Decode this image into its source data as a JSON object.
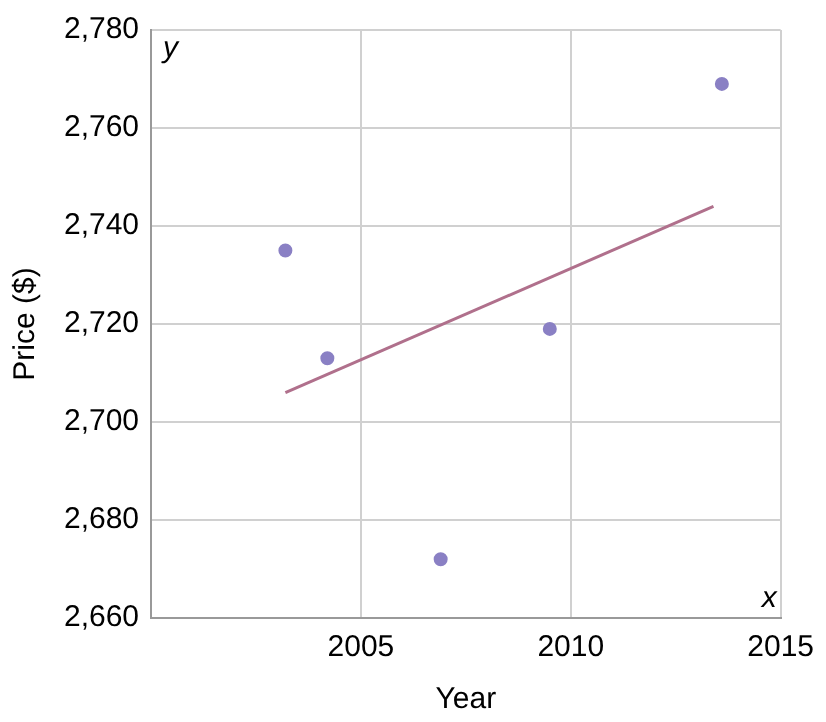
{
  "chart_data": {
    "type": "scatter",
    "xlabel": "Year",
    "ylabel": "Price ($)",
    "xlim": [
      2000,
      2015
    ],
    "xticks": [
      2005,
      2010,
      2015
    ],
    "ylim": [
      2660,
      2780
    ],
    "yticks": [
      {
        "value": 2660,
        "label": "2,660"
      },
      {
        "value": 2680,
        "label": "2,680"
      },
      {
        "value": 2700,
        "label": "2,700"
      },
      {
        "value": 2720,
        "label": "2,720"
      },
      {
        "value": 2740,
        "label": "2,740"
      },
      {
        "value": 2760,
        "label": "2,760"
      },
      {
        "value": 2780,
        "label": "2,780"
      }
    ],
    "grid": true,
    "legend": false,
    "marker": "circle",
    "annotations": [
      "y",
      "x"
    ],
    "series": [
      {
        "type": "scatter",
        "color": "#8a80c4",
        "x": [
          2003.2,
          2004.2,
          2006.9,
          2009.5,
          2013.6
        ],
        "values": [
          2735,
          2713,
          2672,
          2719,
          2769
        ]
      },
      {
        "type": "line",
        "color": "#b0708c",
        "x": [
          2003.2,
          2013.4
        ],
        "values": [
          2706,
          2744
        ],
        "marker": "none"
      }
    ]
  }
}
